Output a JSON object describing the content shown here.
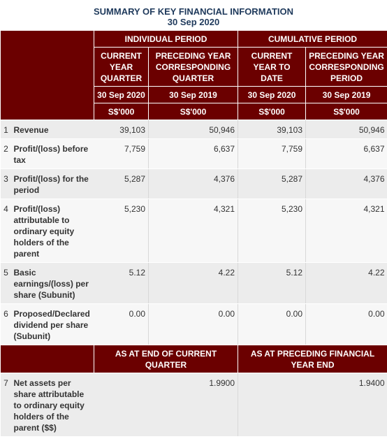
{
  "title": "SUMMARY OF KEY FINANCIAL INFORMATION",
  "date": "30 Sep 2020",
  "groups": {
    "individual": "INDIVIDUAL PERIOD",
    "cumulative": "CUMULATIVE PERIOD"
  },
  "columns": [
    {
      "heading": "CURRENT YEAR QUARTER",
      "date": "30 Sep 2020",
      "unit": "S$'000"
    },
    {
      "heading": "PRECEDING YEAR CORRESPONDING QUARTER",
      "date": "30 Sep 2019",
      "unit": "S$'000"
    },
    {
      "heading": "CURRENT YEAR TO DATE",
      "date": "30 Sep 2020",
      "unit": "S$'000"
    },
    {
      "heading": "PRECEDING YEAR CORRESPONDING PERIOD",
      "date": "30 Sep 2019",
      "unit": "S$'000"
    }
  ],
  "rows": [
    {
      "no": "1",
      "label": "Revenue",
      "values": [
        "39,103",
        "50,946",
        "39,103",
        "50,946"
      ]
    },
    {
      "no": "2",
      "label": "Profit/(loss) before tax",
      "values": [
        "7,759",
        "6,637",
        "7,759",
        "6,637"
      ]
    },
    {
      "no": "3",
      "label": "Profit/(loss) for the period",
      "values": [
        "5,287",
        "4,376",
        "5,287",
        "4,376"
      ]
    },
    {
      "no": "4",
      "label": "Profit/(loss) attributable to ordinary equity holders of the parent",
      "values": [
        "5,230",
        "4,321",
        "5,230",
        "4,321"
      ]
    },
    {
      "no": "5",
      "label": "Basic earnings/(loss) per share (Subunit)",
      "values": [
        "5.12",
        "4.22",
        "5.12",
        "4.22"
      ]
    },
    {
      "no": "6",
      "label": "Proposed/Declared dividend per share (Subunit)",
      "values": [
        "0.00",
        "0.00",
        "0.00",
        "0.00"
      ]
    }
  ],
  "asat": {
    "current": "AS AT END OF CURRENT QUARTER",
    "preceding": "AS AT PRECEDING FINANCIAL YEAR END"
  },
  "netassets": {
    "no": "7",
    "label": "Net assets per share attributable to ordinary equity holders of the parent ($$)",
    "current": "1.9900",
    "preceding": "1.9400"
  }
}
